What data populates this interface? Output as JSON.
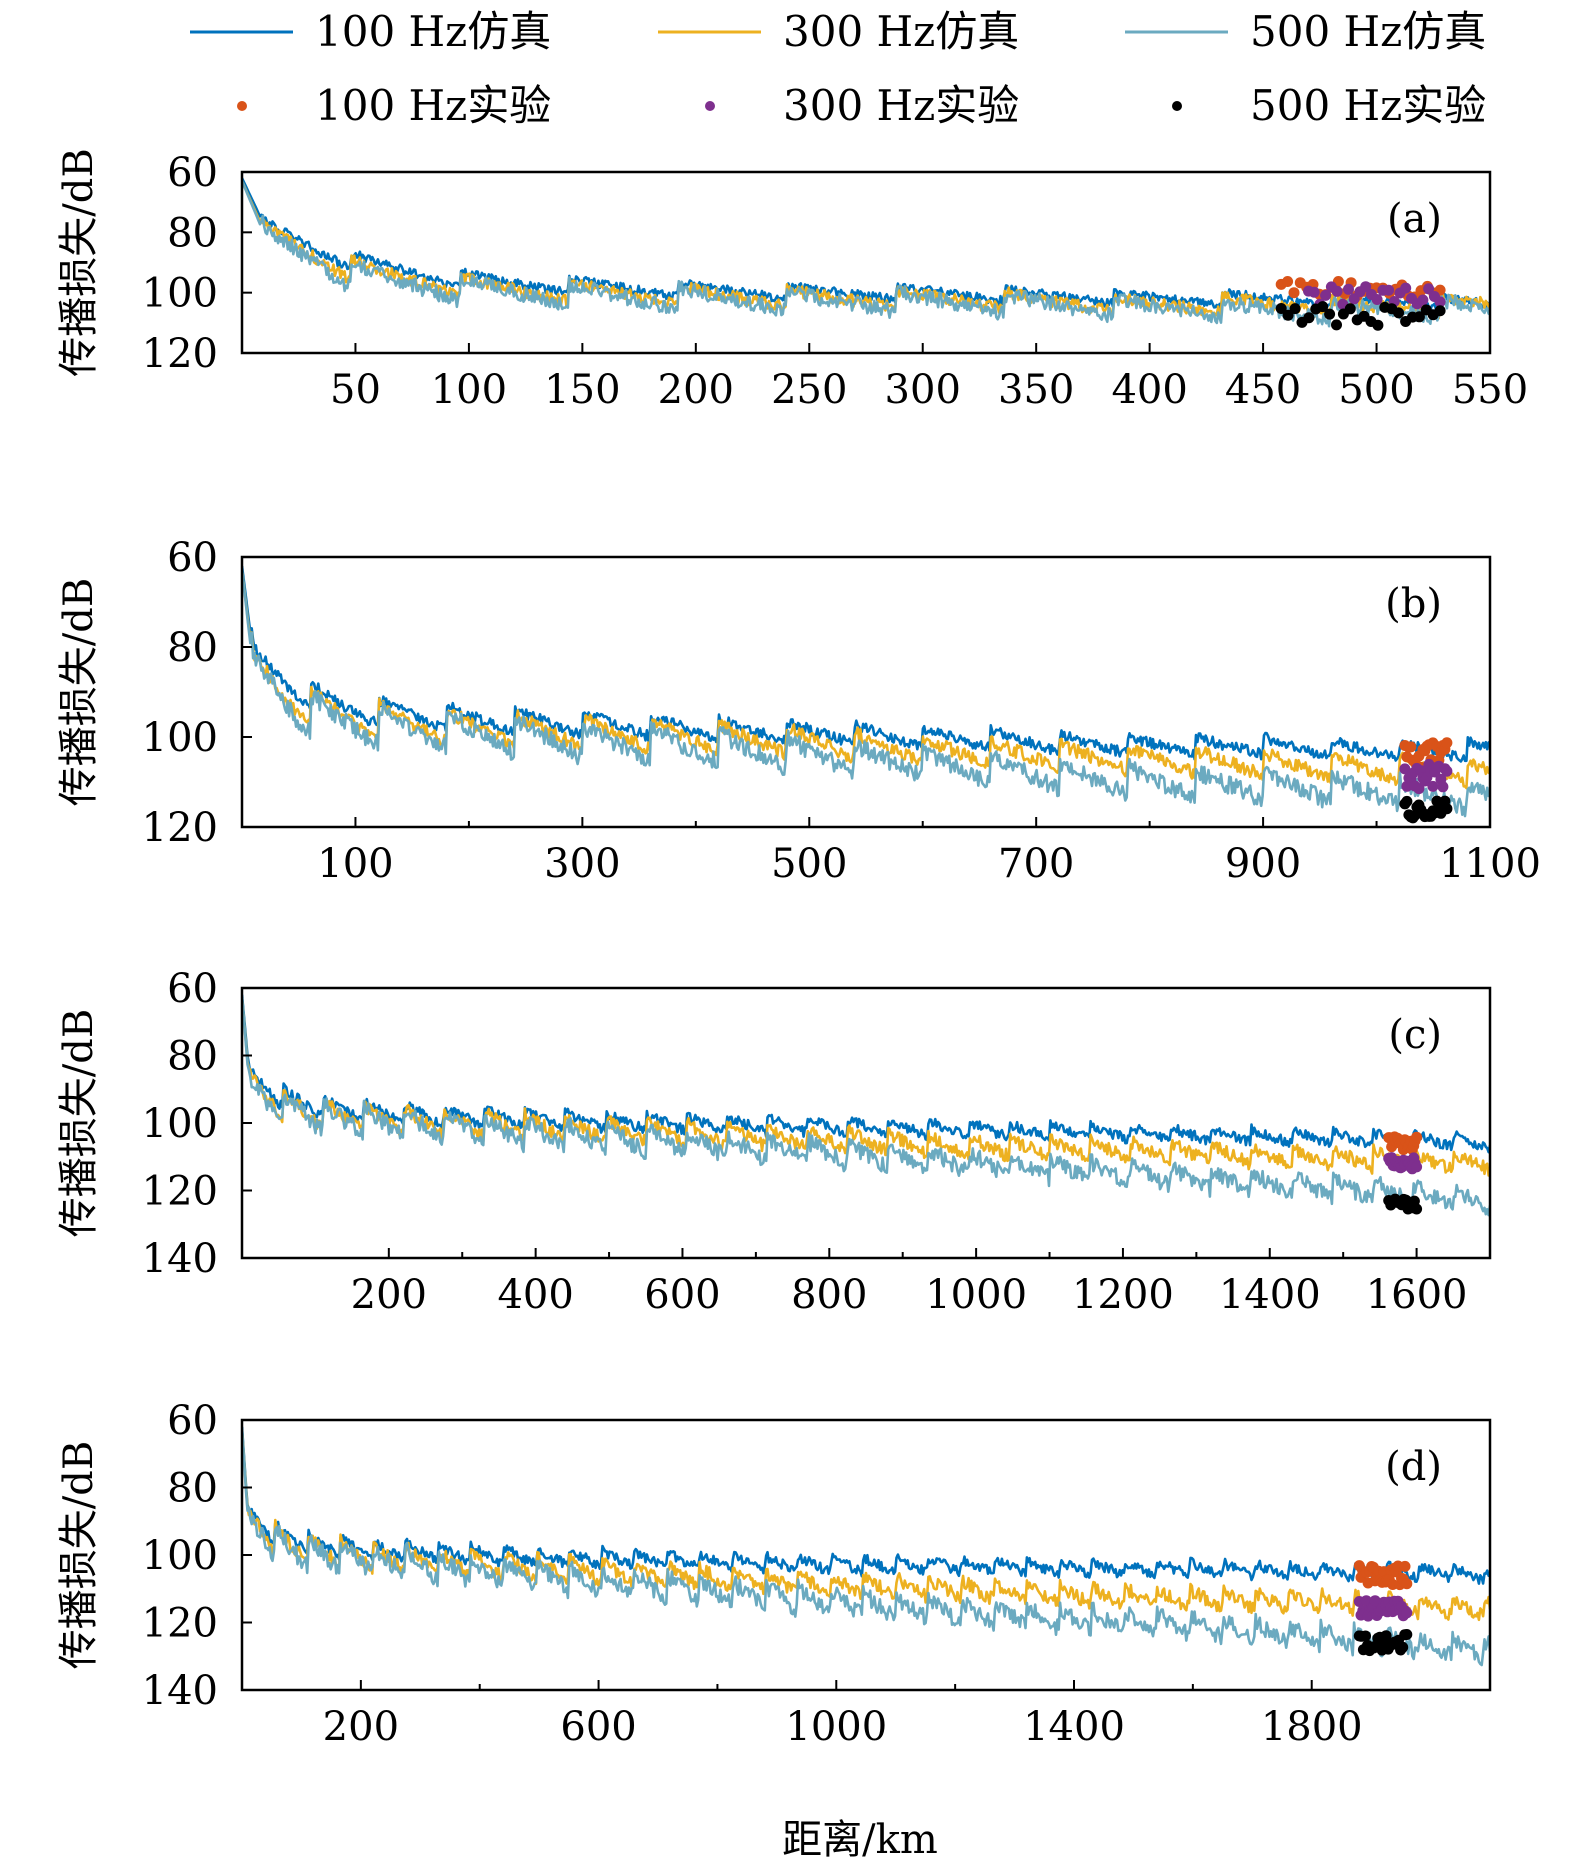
{
  "legend": {
    "items": [
      {
        "label": "100 Hz仿真",
        "kind": "line",
        "color": "#0072bd"
      },
      {
        "label": "300 Hz仿真",
        "kind": "line",
        "color": "#edb120"
      },
      {
        "label": "500 Hz仿真",
        "kind": "line",
        "color": "#6baac0"
      },
      {
        "label": "100 Hz实验",
        "kind": "dot",
        "color": "#d95319"
      },
      {
        "label": "300 Hz实验",
        "kind": "dot",
        "color": "#7e2f8e"
      },
      {
        "label": "500 Hz实验",
        "kind": "dot",
        "color": "#000000"
      }
    ]
  },
  "xlabel": "距离/km",
  "chart_data": [
    {
      "type": "line",
      "panel": "(a)",
      "ylabel": "传播损失/dB",
      "xlim": [
        0,
        550
      ],
      "ylim": [
        60,
        120
      ],
      "y_inverted": true,
      "xticks": [
        50,
        100,
        150,
        200,
        250,
        300,
        350,
        400,
        450,
        500,
        550
      ],
      "xtick_labels": [
        "50",
        "100",
        "150",
        "200",
        "250",
        "300",
        "350",
        "400",
        "450",
        "500",
        "550"
      ],
      "yticks": [
        60,
        80,
        100,
        120
      ],
      "ytick_labels": [
        "60",
        "80",
        "100",
        "120"
      ],
      "series": [
        {
          "name": "100 Hz仿真",
          "color": "#0072bd",
          "trend": {
            "x": [
              0,
              10,
              50,
              100,
              150,
              200,
              250,
              300,
              350,
              400,
              450,
              500,
              550
            ],
            "y": [
              62,
              78,
              90,
              96,
              98,
              99,
              100,
              100,
              101,
              102,
              102,
              103,
              104
            ]
          },
          "cycle_km": 48,
          "ripple_db": 6,
          "noise_db": 1.5
        },
        {
          "name": "300 Hz仿真",
          "color": "#edb120",
          "trend": {
            "x": [
              0,
              10,
              50,
              100,
              150,
              200,
              250,
              300,
              350,
              400,
              450,
              500,
              550
            ],
            "y": [
              63,
              80,
              93,
              98,
              100,
              101,
              102,
              102,
              103,
              104,
              104,
              105,
              104
            ]
          },
          "cycle_km": 48,
          "ripple_db": 8,
          "noise_db": 2
        },
        {
          "name": "500 Hz仿真",
          "color": "#6baac0",
          "trend": {
            "x": [
              0,
              10,
              50,
              100,
              150,
              200,
              250,
              300,
              350,
              400,
              450,
              500,
              550
            ],
            "y": [
              63,
              81,
              95,
              99,
              101,
              102,
              103,
              103,
              104,
              105,
              106,
              106,
              105
            ]
          },
          "cycle_km": 48,
          "ripple_db": 9,
          "noise_db": 2.5
        }
      ],
      "experiments": [
        {
          "name": "100 Hz实验",
          "color": "#d95319",
          "x_range": [
            458,
            528
          ],
          "y_center": 99,
          "y_spread": 3,
          "count": 26
        },
        {
          "name": "300 Hz实验",
          "color": "#7e2f8e",
          "x_range": [
            470,
            528
          ],
          "y_center": 101,
          "y_spread": 3,
          "count": 24
        },
        {
          "name": "500 Hz实验",
          "color": "#000000",
          "x_range": [
            458,
            528
          ],
          "y_center": 107,
          "y_spread": 4,
          "count": 24
        }
      ],
      "annotation": "(a)"
    },
    {
      "type": "line",
      "panel": "(b)",
      "ylabel": "传播损失/dB",
      "xlim": [
        0,
        1100
      ],
      "ylim": [
        60,
        120
      ],
      "y_inverted": true,
      "xticks": [
        100,
        300,
        500,
        700,
        900,
        1100
      ],
      "xtick_labels": [
        "100",
        "300",
        "500",
        "700",
        "900",
        "1100"
      ],
      "yticks": [
        60,
        80,
        100,
        120
      ],
      "ytick_labels": [
        "60",
        "80",
        "100",
        "120"
      ],
      "series": [
        {
          "name": "100 Hz仿真",
          "color": "#0072bd",
          "trend": {
            "x": [
              0,
              10,
              50,
              100,
              200,
              300,
              400,
              500,
              600,
              700,
              800,
              900,
              1000,
              1100
            ],
            "y": [
              62,
              82,
              90,
              94,
              96,
              97,
              98,
              99,
              100,
              101,
              102,
              102,
              103,
              103
            ]
          },
          "cycle_km": 60,
          "ripple_db": 6,
          "noise_db": 1.2
        },
        {
          "name": "300 Hz仿真",
          "color": "#edb120",
          "trend": {
            "x": [
              0,
              10,
              50,
              100,
              200,
              300,
              400,
              500,
              600,
              700,
              800,
              900,
              1000,
              1100
            ],
            "y": [
              63,
              84,
              93,
              96,
              98,
              99,
              100,
              101,
              103,
              104,
              105,
              106,
              107,
              108
            ]
          },
          "cycle_km": 60,
          "ripple_db": 8,
          "noise_db": 1.5
        },
        {
          "name": "500 Hz仿真",
          "color": "#6baac0",
          "trend": {
            "x": [
              0,
              10,
              50,
              100,
              200,
              300,
              400,
              500,
              600,
              700,
              800,
              900,
              1000,
              1100
            ],
            "y": [
              63,
              85,
              94,
              97,
              99,
              101,
              102,
              104,
              106,
              108,
              110,
              111,
              112,
              114
            ]
          },
          "cycle_km": 60,
          "ripple_db": 9,
          "noise_db": 2
        }
      ],
      "experiments": [
        {
          "name": "100 Hz实验",
          "color": "#d95319",
          "x_range": [
            1025,
            1062
          ],
          "y_center": 104,
          "y_spread": 3,
          "count": 22
        },
        {
          "name": "300 Hz实验",
          "color": "#7e2f8e",
          "x_range": [
            1025,
            1062
          ],
          "y_center": 109,
          "y_spread": 3,
          "count": 22
        },
        {
          "name": "500 Hz实验",
          "color": "#000000",
          "x_range": [
            1025,
            1062
          ],
          "y_center": 116,
          "y_spread": 2,
          "count": 22
        }
      ],
      "annotation": "(b)"
    },
    {
      "type": "line",
      "panel": "(c)",
      "ylabel": "传播损失/dB",
      "xlim": [
        0,
        1700
      ],
      "ylim": [
        60,
        140
      ],
      "y_inverted": true,
      "xticks": [
        200,
        400,
        600,
        800,
        1000,
        1200,
        1400,
        1600
      ],
      "xtick_labels": [
        "200",
        "400",
        "600",
        "800",
        "1000",
        "1200",
        "1400",
        "1600"
      ],
      "yticks": [
        60,
        80,
        100,
        120,
        140
      ],
      "ytick_labels": [
        "60",
        "80",
        "100",
        "120",
        "140"
      ],
      "series": [
        {
          "name": "100 Hz仿真",
          "color": "#0072bd",
          "trend": {
            "x": [
              0,
              10,
              50,
              100,
              200,
              400,
              600,
              800,
              1000,
              1200,
              1400,
              1600,
              1700
            ],
            "y": [
              62,
              86,
              92,
              95,
              97,
              99,
              100,
              101,
              102,
              103,
              104,
              105,
              106
            ]
          },
          "cycle_km": 55,
          "ripple_db": 6,
          "noise_db": 1.5
        },
        {
          "name": "300 Hz仿真",
          "color": "#edb120",
          "trend": {
            "x": [
              0,
              10,
              50,
              100,
              200,
              400,
              600,
              800,
              1000,
              1200,
              1400,
              1600,
              1700
            ],
            "y": [
              63,
              88,
              94,
              97,
              99,
              101,
              103,
              105,
              107,
              108,
              110,
              111,
              112
            ]
          },
          "cycle_km": 55,
          "ripple_db": 8,
          "noise_db": 2
        },
        {
          "name": "500 Hz仿真",
          "color": "#6baac0",
          "trend": {
            "x": [
              0,
              10,
              50,
              100,
              200,
              400,
              600,
              800,
              1000,
              1200,
              1400,
              1600,
              1700
            ],
            "y": [
              63,
              89,
              95,
              98,
              100,
              103,
              106,
              109,
              112,
              115,
              118,
              121,
              123
            ]
          },
          "cycle_km": 55,
          "ripple_db": 9,
          "noise_db": 2.5
        }
      ],
      "experiments": [
        {
          "name": "100 Hz实验",
          "color": "#d95319",
          "x_range": [
            1562,
            1600
          ],
          "y_center": 106,
          "y_spread": 2,
          "count": 20
        },
        {
          "name": "300 Hz实验",
          "color": "#7e2f8e",
          "x_range": [
            1562,
            1600
          ],
          "y_center": 112,
          "y_spread": 2,
          "count": 20
        },
        {
          "name": "500 Hz实验",
          "color": "#000000",
          "x_range": [
            1562,
            1600
          ],
          "y_center": 124,
          "y_spread": 1.5,
          "count": 14
        }
      ],
      "annotation": "(c)"
    },
    {
      "type": "line",
      "panel": "(d)",
      "ylabel": "传播损失/dB",
      "xlim": [
        0,
        2100
      ],
      "ylim": [
        60,
        140
      ],
      "y_inverted": true,
      "xticks": [
        200,
        600,
        1000,
        1400,
        1800
      ],
      "xtick_labels": [
        "200",
        "600",
        "1000",
        "1400",
        "1800"
      ],
      "yticks": [
        60,
        80,
        100,
        120,
        140
      ],
      "ytick_labels": [
        "60",
        "80",
        "100",
        "120",
        "140"
      ],
      "series": [
        {
          "name": "100 Hz仿真",
          "color": "#0072bd",
          "trend": {
            "x": [
              0,
              10,
              50,
              100,
              200,
              400,
              600,
              800,
              1000,
              1200,
              1400,
              1600,
              1800,
              2000,
              2100
            ],
            "y": [
              62,
              88,
              93,
              96,
              98,
              100,
              101,
              102,
              103,
              103,
              104,
              104,
              105,
              105,
              106
            ]
          },
          "cycle_km": 55,
          "ripple_db": 6,
          "noise_db": 1.5
        },
        {
          "name": "300 Hz仿真",
          "color": "#edb120",
          "trend": {
            "x": [
              0,
              10,
              50,
              100,
              200,
              400,
              600,
              800,
              1000,
              1200,
              1400,
              1600,
              1800,
              2000,
              2100
            ],
            "y": [
              63,
              89,
              95,
              98,
              100,
              103,
              105,
              107,
              109,
              110,
              112,
              113,
              114,
              115,
              116
            ]
          },
          "cycle_km": 55,
          "ripple_db": 8,
          "noise_db": 2
        },
        {
          "name": "500 Hz仿真",
          "color": "#6baac0",
          "trend": {
            "x": [
              0,
              10,
              50,
              100,
              200,
              400,
              600,
              800,
              1000,
              1200,
              1400,
              1600,
              1800,
              2000,
              2100
            ],
            "y": [
              63,
              90,
              96,
              99,
              101,
              105,
              108,
              111,
              114,
              117,
              119,
              121,
              124,
              127,
              128
            ]
          },
          "cycle_km": 55,
          "ripple_db": 9,
          "noise_db": 2.5
        }
      ],
      "experiments": [
        {
          "name": "100 Hz实验",
          "color": "#d95319",
          "x_range": [
            1880,
            1960
          ],
          "y_center": 106,
          "y_spread": 3,
          "count": 28
        },
        {
          "name": "300 Hz实验",
          "color": "#7e2f8e",
          "x_range": [
            1880,
            1960
          ],
          "y_center": 116,
          "y_spread": 2.5,
          "count": 28
        },
        {
          "name": "500 Hz实验",
          "color": "#000000",
          "x_range": [
            1880,
            1960
          ],
          "y_center": 126,
          "y_spread": 2.5,
          "count": 24
        }
      ],
      "annotation": "(d)"
    }
  ]
}
